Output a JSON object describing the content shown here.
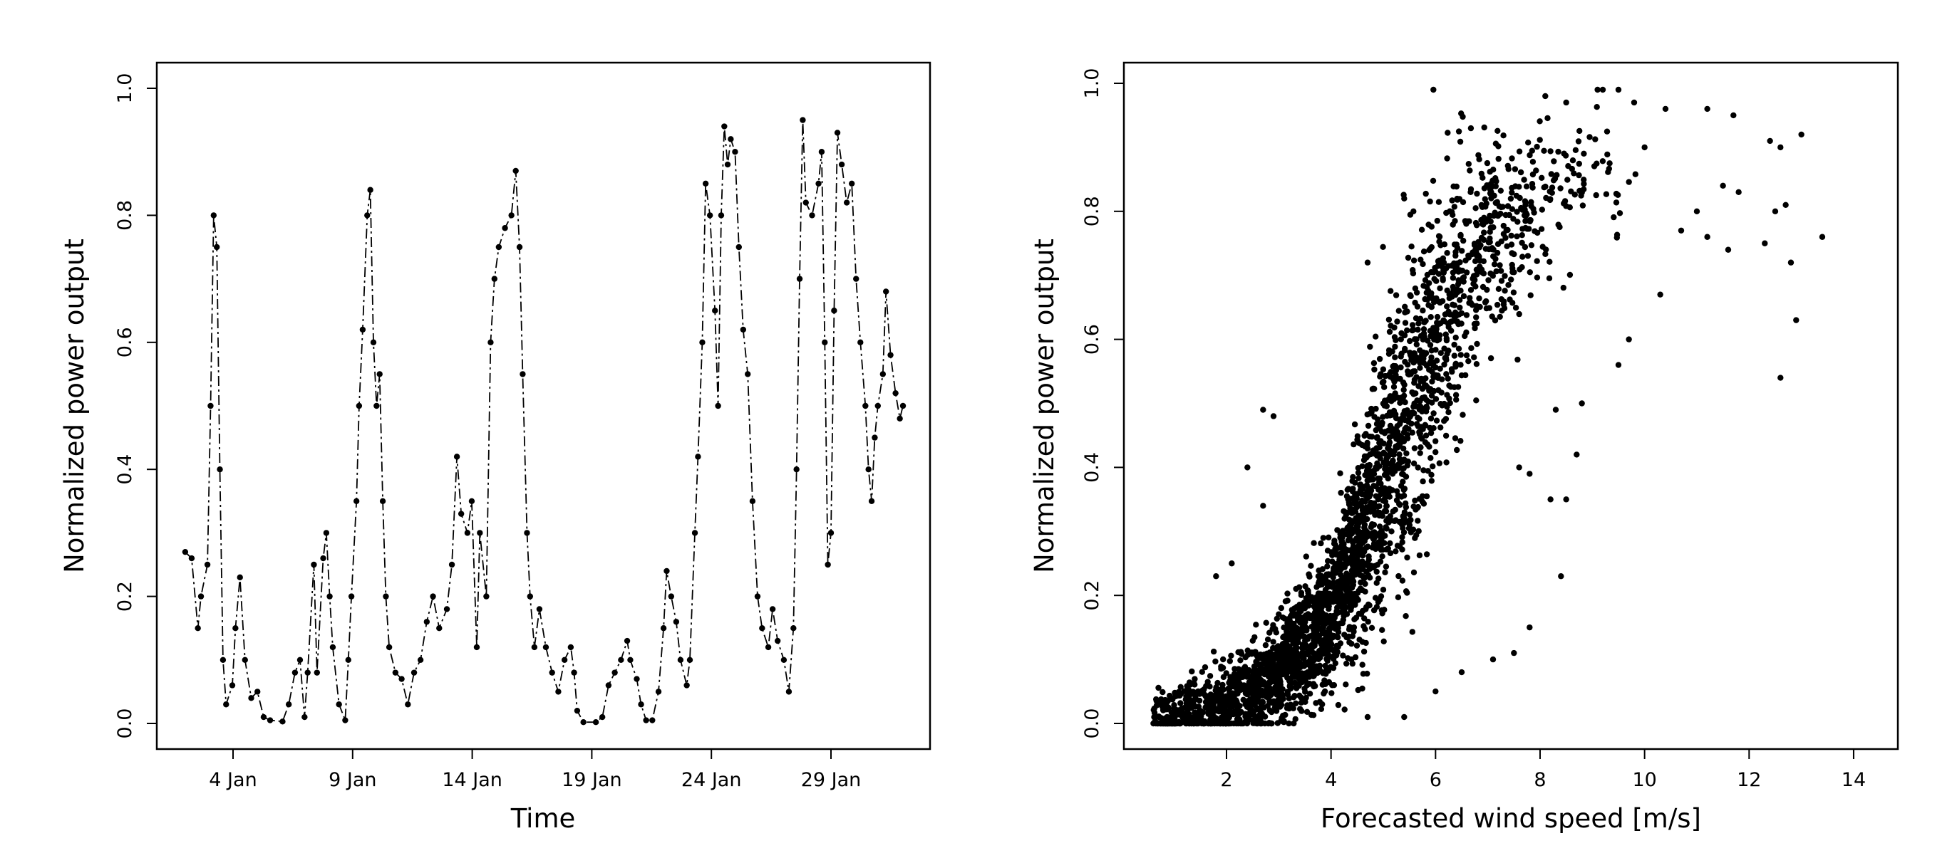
{
  "chart_data": [
    {
      "type": "line",
      "title": "",
      "xlabel": "Time",
      "ylabel": "Normalized power output",
      "x_unit": "day of January",
      "xlim": [
        1.8,
        34.2
      ],
      "ylim": [
        -0.04,
        1.04
      ],
      "x_ticks": [
        {
          "value": 4,
          "label": "4 Jan"
        },
        {
          "value": 9,
          "label": "9 Jan"
        },
        {
          "value": 14,
          "label": "14 Jan"
        },
        {
          "value": 19,
          "label": "19 Jan"
        },
        {
          "value": 24,
          "label": "24 Jan"
        },
        {
          "value": 29,
          "label": "29 Jan"
        }
      ],
      "y_ticks": [
        {
          "value": 0,
          "label": "0.0"
        },
        {
          "value": 0.2,
          "label": "0.2"
        },
        {
          "value": 0.4,
          "label": "0.4"
        },
        {
          "value": 0.6,
          "label": "0.6"
        },
        {
          "value": 0.8,
          "label": "0.8"
        },
        {
          "value": 1.0,
          "label": "1.0"
        }
      ],
      "grid": false,
      "line_style": "dash-dot with point markers",
      "color": "#000000",
      "points": [
        [
          2.0,
          0.27
        ],
        [
          2.27,
          0.26
        ],
        [
          2.53,
          0.15
        ],
        [
          2.66,
          0.2
        ],
        [
          2.93,
          0.25
        ],
        [
          3.06,
          0.5
        ],
        [
          3.19,
          0.8
        ],
        [
          3.32,
          0.75
        ],
        [
          3.45,
          0.4
        ],
        [
          3.58,
          0.1
        ],
        [
          3.71,
          0.03
        ],
        [
          3.97,
          0.06
        ],
        [
          4.1,
          0.15
        ],
        [
          4.29,
          0.23
        ],
        [
          4.5,
          0.1
        ],
        [
          4.76,
          0.04
        ],
        [
          5.02,
          0.05
        ],
        [
          5.28,
          0.01
        ],
        [
          5.55,
          0.005
        ],
        [
          6.07,
          0.003
        ],
        [
          6.33,
          0.03
        ],
        [
          6.59,
          0.08
        ],
        [
          6.8,
          0.1
        ],
        [
          6.99,
          0.01
        ],
        [
          7.12,
          0.08
        ],
        [
          7.38,
          0.25
        ],
        [
          7.51,
          0.08
        ],
        [
          7.77,
          0.26
        ],
        [
          7.9,
          0.3
        ],
        [
          8.04,
          0.2
        ],
        [
          8.17,
          0.12
        ],
        [
          8.43,
          0.03
        ],
        [
          8.69,
          0.005
        ],
        [
          8.82,
          0.1
        ],
        [
          8.95,
          0.2
        ],
        [
          9.16,
          0.35
        ],
        [
          9.27,
          0.5
        ],
        [
          9.42,
          0.62
        ],
        [
          9.61,
          0.8
        ],
        [
          9.74,
          0.84
        ],
        [
          9.87,
          0.6
        ],
        [
          10.0,
          0.5
        ],
        [
          10.13,
          0.55
        ],
        [
          10.26,
          0.35
        ],
        [
          10.39,
          0.2
        ],
        [
          10.53,
          0.12
        ],
        [
          10.79,
          0.08
        ],
        [
          11.05,
          0.07
        ],
        [
          11.31,
          0.03
        ],
        [
          11.57,
          0.08
        ],
        [
          11.84,
          0.1
        ],
        [
          12.1,
          0.16
        ],
        [
          12.36,
          0.2
        ],
        [
          12.62,
          0.15
        ],
        [
          12.94,
          0.18
        ],
        [
          13.15,
          0.25
        ],
        [
          13.36,
          0.42
        ],
        [
          13.54,
          0.33
        ],
        [
          13.8,
          0.3
        ],
        [
          13.98,
          0.35
        ],
        [
          14.19,
          0.12
        ],
        [
          14.32,
          0.3
        ],
        [
          14.59,
          0.2
        ],
        [
          14.77,
          0.6
        ],
        [
          14.93,
          0.7
        ],
        [
          15.11,
          0.75
        ],
        [
          15.37,
          0.78
        ],
        [
          15.64,
          0.8
        ],
        [
          15.82,
          0.87
        ],
        [
          15.98,
          0.75
        ],
        [
          16.11,
          0.55
        ],
        [
          16.29,
          0.3
        ],
        [
          16.42,
          0.2
        ],
        [
          16.6,
          0.12
        ],
        [
          16.81,
          0.18
        ],
        [
          17.08,
          0.12
        ],
        [
          17.34,
          0.08
        ],
        [
          17.6,
          0.05
        ],
        [
          17.86,
          0.1
        ],
        [
          18.12,
          0.12
        ],
        [
          18.26,
          0.08
        ],
        [
          18.39,
          0.02
        ],
        [
          18.65,
          0.002
        ],
        [
          19.17,
          0.002
        ],
        [
          19.44,
          0.01
        ],
        [
          19.7,
          0.06
        ],
        [
          19.96,
          0.08
        ],
        [
          20.22,
          0.1
        ],
        [
          20.48,
          0.13
        ],
        [
          20.61,
          0.1
        ],
        [
          20.88,
          0.07
        ],
        [
          21.06,
          0.03
        ],
        [
          21.27,
          0.005
        ],
        [
          21.53,
          0.005
        ],
        [
          21.79,
          0.05
        ],
        [
          22.0,
          0.15
        ],
        [
          22.13,
          0.24
        ],
        [
          22.32,
          0.2
        ],
        [
          22.53,
          0.16
        ],
        [
          22.71,
          0.1
        ],
        [
          22.97,
          0.06
        ],
        [
          23.1,
          0.1
        ],
        [
          23.31,
          0.3
        ],
        [
          23.44,
          0.42
        ],
        [
          23.62,
          0.6
        ],
        [
          23.76,
          0.85
        ],
        [
          23.94,
          0.8
        ],
        [
          24.15,
          0.65
        ],
        [
          24.28,
          0.5
        ],
        [
          24.41,
          0.8
        ],
        [
          24.54,
          0.94
        ],
        [
          24.68,
          0.88
        ],
        [
          24.81,
          0.92
        ],
        [
          24.99,
          0.9
        ],
        [
          25.15,
          0.75
        ],
        [
          25.33,
          0.62
        ],
        [
          25.52,
          0.55
        ],
        [
          25.72,
          0.35
        ],
        [
          25.93,
          0.2
        ],
        [
          26.12,
          0.15
        ],
        [
          26.38,
          0.12
        ],
        [
          26.56,
          0.18
        ],
        [
          26.77,
          0.13
        ],
        [
          27.03,
          0.1
        ],
        [
          27.24,
          0.05
        ],
        [
          27.43,
          0.15
        ],
        [
          27.56,
          0.4
        ],
        [
          27.69,
          0.7
        ],
        [
          27.82,
          0.95
        ],
        [
          27.95,
          0.82
        ],
        [
          28.21,
          0.8
        ],
        [
          28.48,
          0.85
        ],
        [
          28.61,
          0.9
        ],
        [
          28.74,
          0.6
        ],
        [
          28.87,
          0.25
        ],
        [
          29.0,
          0.3
        ],
        [
          29.13,
          0.65
        ],
        [
          29.27,
          0.93
        ],
        [
          29.45,
          0.88
        ],
        [
          29.66,
          0.82
        ],
        [
          29.87,
          0.85
        ],
        [
          30.05,
          0.7
        ],
        [
          30.23,
          0.6
        ],
        [
          30.44,
          0.5
        ],
        [
          30.57,
          0.4
        ],
        [
          30.7,
          0.35
        ],
        [
          30.83,
          0.45
        ],
        [
          30.96,
          0.5
        ],
        [
          31.17,
          0.55
        ],
        [
          31.3,
          0.68
        ],
        [
          31.49,
          0.58
        ],
        [
          31.7,
          0.52
        ],
        [
          31.88,
          0.48
        ],
        [
          32.01,
          0.5
        ]
      ]
    },
    {
      "type": "scatter",
      "title": "",
      "xlabel": "Forecasted wind speed [m/s]",
      "ylabel": "Normalized power output",
      "xlim": [
        0.2,
        14.9
      ],
      "ylim": [
        -0.04,
        1.04
      ],
      "x_ticks": [
        {
          "value": 2,
          "label": "2"
        },
        {
          "value": 4,
          "label": "4"
        },
        {
          "value": 6,
          "label": "6"
        },
        {
          "value": 8,
          "label": "8"
        },
        {
          "value": 10,
          "label": "10"
        },
        {
          "value": 12,
          "label": "12"
        },
        {
          "value": 14,
          "label": "14"
        }
      ],
      "y_ticks": [
        {
          "value": 0,
          "label": "0.0"
        },
        {
          "value": 0.2,
          "label": "0.2"
        },
        {
          "value": 0.4,
          "label": "0.4"
        },
        {
          "value": 0.6,
          "label": "0.6"
        },
        {
          "value": 0.8,
          "label": "0.8"
        },
        {
          "value": 1.0,
          "label": "1.0"
        }
      ],
      "grid": false,
      "color": "#000000",
      "dense_cloud": {
        "n_points": 3000,
        "wind_speed_mean": 4.3,
        "wind_speed_sd": 1.9,
        "wind_speed_min": 0.6,
        "power_sd": 0.075,
        "mean_curve": [
          [
            0.6,
            0.0
          ],
          [
            1,
            0.01
          ],
          [
            2,
            0.03
          ],
          [
            3,
            0.08
          ],
          [
            4,
            0.17
          ],
          [
            5,
            0.38
          ],
          [
            6,
            0.6
          ],
          [
            7,
            0.75
          ],
          [
            8,
            0.82
          ],
          [
            9,
            0.86
          ],
          [
            10,
            0.87
          ],
          [
            12,
            0.88
          ],
          [
            14,
            0.88
          ]
        ]
      },
      "points": [
        [
          2.4,
          0.4
        ],
        [
          2.7,
          0.49
        ],
        [
          2.9,
          0.48
        ],
        [
          2.7,
          0.34
        ],
        [
          1.8,
          0.23
        ],
        [
          2.1,
          0.25
        ],
        [
          4.7,
          0.72
        ],
        [
          5.4,
          0.82
        ],
        [
          7.1,
          0.1
        ],
        [
          7.5,
          0.11
        ],
        [
          7.8,
          0.15
        ],
        [
          8.4,
          0.23
        ],
        [
          8.2,
          0.35
        ],
        [
          8.5,
          0.35
        ],
        [
          8.7,
          0.42
        ],
        [
          9.5,
          0.56
        ],
        [
          9.7,
          0.6
        ],
        [
          10.3,
          0.67
        ],
        [
          12.6,
          0.54
        ],
        [
          12.9,
          0.63
        ],
        [
          12.8,
          0.72
        ],
        [
          13.4,
          0.76
        ],
        [
          12.3,
          0.75
        ],
        [
          11.6,
          0.74
        ],
        [
          13.0,
          0.92
        ],
        [
          12.6,
          0.9
        ],
        [
          9.1,
          0.99
        ],
        [
          9.2,
          0.99
        ],
        [
          9.5,
          0.99
        ],
        [
          8.1,
          0.98
        ],
        [
          11.2,
          0.96
        ],
        [
          10.4,
          0.96
        ],
        [
          12.7,
          0.81
        ],
        [
          12.5,
          0.8
        ],
        [
          11.2,
          0.76
        ],
        [
          10.7,
          0.77
        ],
        [
          6.5,
          0.08
        ],
        [
          6.0,
          0.05
        ],
        [
          5.4,
          0.01
        ],
        [
          4.7,
          0.01
        ],
        [
          11.8,
          0.83
        ],
        [
          11.5,
          0.84
        ],
        [
          11.0,
          0.8
        ],
        [
          10.0,
          0.9
        ],
        [
          12.4,
          0.91
        ],
        [
          11.7,
          0.95
        ],
        [
          9.8,
          0.97
        ],
        [
          8.5,
          0.97
        ],
        [
          8.8,
          0.5
        ],
        [
          8.3,
          0.49
        ],
        [
          7.6,
          0.4
        ],
        [
          7.8,
          0.39
        ]
      ]
    }
  ]
}
